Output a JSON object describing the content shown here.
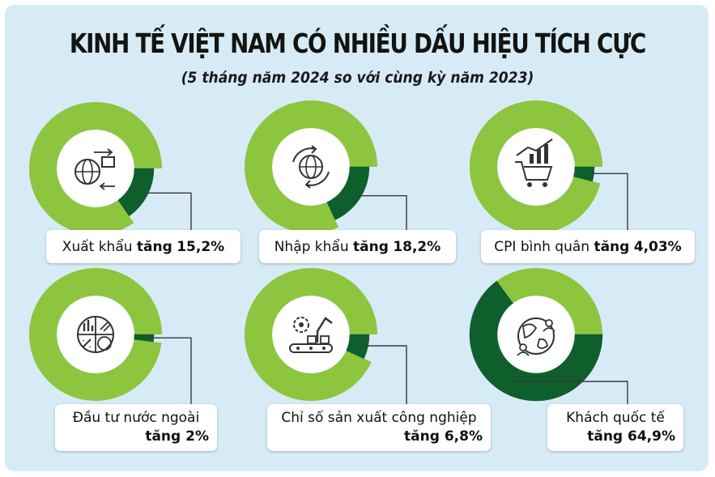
{
  "title": "KINH TẾ VIỆT NAM CÓ NHIỀU DẤU HIỆU TÍCH CỰC",
  "subtitle": "(5 tháng năm 2024 so với cùng kỳ năm 2023)",
  "colors": {
    "background": "#d7ebf7",
    "ring": "#8dc53e",
    "highlight": "#0f5f2d",
    "connector": "#3a3a3a"
  },
  "chart_data": [
    {
      "type": "pie",
      "label": "Xuất khẩu",
      "increase_word": "tăng",
      "value_text": "15,2%",
      "value": 15.2,
      "icon": "globe-export-icon"
    },
    {
      "type": "pie",
      "label": "Nhập khẩu",
      "increase_word": "tăng",
      "value_text": "18,2%",
      "value": 18.2,
      "icon": "globe-import-icon"
    },
    {
      "type": "pie",
      "label": "CPI bình quân",
      "increase_word": "tăng",
      "value_text": "4,03%",
      "value": 4.03,
      "icon": "shopping-cart-chart-icon"
    },
    {
      "type": "pie",
      "label": "Đầu tư nước ngoài",
      "increase_word": "tăng",
      "value_text": "2%",
      "value": 2,
      "icon": "investment-pie-icon"
    },
    {
      "type": "pie",
      "label": "Chỉ số sản xuất công nghiệp",
      "increase_word": "tăng",
      "value_text": "6,8%",
      "value": 6.8,
      "icon": "industrial-robot-icon"
    },
    {
      "type": "pie",
      "label": "Khách quốc tế",
      "increase_word": "tăng",
      "value_text": "64,9%",
      "value": 64.9,
      "icon": "globe-people-icon"
    }
  ]
}
